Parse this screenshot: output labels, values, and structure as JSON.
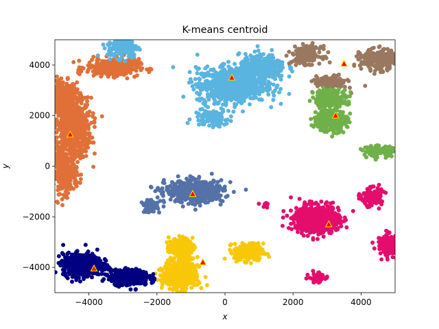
{
  "chart_data": {
    "type": "scatter",
    "title": "K-means centroid",
    "xlabel": "x",
    "ylabel": "y",
    "xlim": [
      -5000,
      5000
    ],
    "ylim": [
      -5000,
      5000
    ],
    "xticks": [
      -4000,
      -2000,
      0,
      2000,
      4000
    ],
    "yticks": [
      -4000,
      -2000,
      0,
      2000,
      4000
    ],
    "xtick_labels": [
      "−4000",
      "−2000",
      "0",
      "2000",
      "4000"
    ],
    "ytick_labels": [
      "−4000",
      "−2000",
      "0",
      "2000",
      "4000"
    ],
    "grid": false,
    "legend": "none",
    "marker_color": "#ff0000",
    "marker_edge": "#ffcc00",
    "clusters": [
      {
        "color": "#e07038",
        "blobs": [
          {
            "cx": -4800,
            "cy": 2800,
            "sx": 260,
            "sy": 350,
            "n": 260
          },
          {
            "cx": -4500,
            "cy": 1500,
            "sx": 330,
            "sy": 700,
            "n": 700
          },
          {
            "cx": -4700,
            "cy": -200,
            "sx": 200,
            "sy": 500,
            "n": 300
          },
          {
            "cx": -3300,
            "cy": 3900,
            "sx": 450,
            "sy": 200,
            "n": 320
          }
        ]
      },
      {
        "color": "#5ab4e0",
        "blobs": [
          {
            "cx": -3000,
            "cy": 4700,
            "sx": 260,
            "sy": 250,
            "n": 180
          },
          {
            "cx": 200,
            "cy": 3200,
            "sx": 600,
            "sy": 400,
            "n": 800
          },
          {
            "cx": 1100,
            "cy": 3900,
            "sx": 400,
            "sy": 300,
            "n": 320
          },
          {
            "cx": -400,
            "cy": 1900,
            "sx": 300,
            "sy": 200,
            "n": 120
          }
        ]
      },
      {
        "color": "#9a7860",
        "blobs": [
          {
            "cx": 2400,
            "cy": 4400,
            "sx": 250,
            "sy": 200,
            "n": 200
          },
          {
            "cx": 3100,
            "cy": 3300,
            "sx": 280,
            "sy": 160,
            "n": 120
          },
          {
            "cx": 4500,
            "cy": 4200,
            "sx": 300,
            "sy": 230,
            "n": 300
          }
        ]
      },
      {
        "color": "#70b048",
        "blobs": [
          {
            "cx": 3100,
            "cy": 2700,
            "sx": 280,
            "sy": 200,
            "n": 250
          },
          {
            "cx": 3100,
            "cy": 1800,
            "sx": 280,
            "sy": 250,
            "n": 300
          },
          {
            "cx": 4500,
            "cy": 600,
            "sx": 250,
            "sy": 120,
            "n": 120
          }
        ]
      },
      {
        "color": "#5472a8",
        "blobs": [
          {
            "cx": -900,
            "cy": -1000,
            "sx": 500,
            "sy": 250,
            "n": 600
          },
          {
            "cx": -2200,
            "cy": -1600,
            "sx": 130,
            "sy": 130,
            "n": 80
          }
        ]
      },
      {
        "color": "#e40d6c",
        "blobs": [
          {
            "cx": 2700,
            "cy": -2100,
            "sx": 380,
            "sy": 320,
            "n": 700
          },
          {
            "cx": 4300,
            "cy": -1200,
            "sx": 180,
            "sy": 200,
            "n": 150
          },
          {
            "cx": 4800,
            "cy": -3100,
            "sx": 180,
            "sy": 250,
            "n": 160
          },
          {
            "cx": 2700,
            "cy": -4400,
            "sx": 130,
            "sy": 120,
            "n": 60
          },
          {
            "cx": 1200,
            "cy": -1550,
            "sx": 100,
            "sy": 60,
            "n": 10
          }
        ]
      },
      {
        "color": "#f8c808",
        "blobs": [
          {
            "cx": -1300,
            "cy": -3200,
            "sx": 200,
            "sy": 200,
            "n": 200
          },
          {
            "cx": -1300,
            "cy": -4300,
            "sx": 300,
            "sy": 350,
            "n": 500
          },
          {
            "cx": 700,
            "cy": -3400,
            "sx": 250,
            "sy": 200,
            "n": 250
          }
        ]
      },
      {
        "color": "#000080",
        "blobs": [
          {
            "cx": -4200,
            "cy": -3900,
            "sx": 330,
            "sy": 260,
            "n": 600
          },
          {
            "cx": -2800,
            "cy": -4400,
            "sx": 330,
            "sy": 180,
            "n": 400
          }
        ]
      }
    ],
    "centroids": [
      {
        "x": -4550,
        "y": 1250
      },
      {
        "x": 200,
        "y": 3500
      },
      {
        "x": 3500,
        "y": 4050
      },
      {
        "x": 3250,
        "y": 2000
      },
      {
        "x": -950,
        "y": -1100
      },
      {
        "x": 3050,
        "y": -2300
      },
      {
        "x": -650,
        "y": -3800
      },
      {
        "x": -3850,
        "y": -4050
      }
    ]
  }
}
